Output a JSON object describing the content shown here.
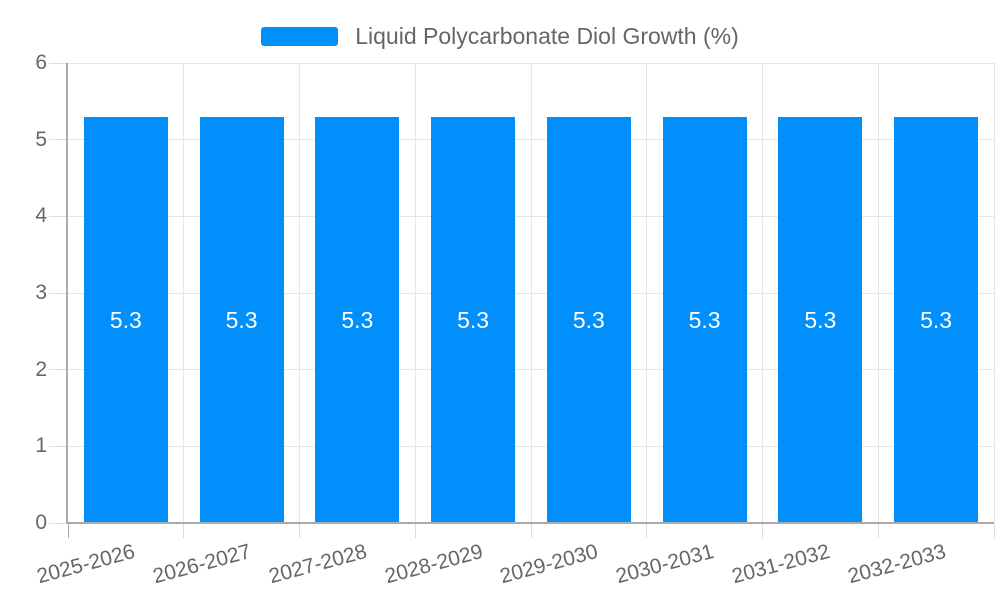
{
  "chart_data": {
    "type": "bar",
    "title": "",
    "categories": [
      "2025-2026",
      "2026-2027",
      "2027-2028",
      "2028-2029",
      "2029-2030",
      "2030-2031",
      "2031-2032",
      "2032-2033"
    ],
    "series": [
      {
        "name": "Liquid Polycarbonate Diol Growth (%)",
        "values": [
          5.3,
          5.3,
          5.3,
          5.3,
          5.3,
          5.3,
          5.3,
          5.3
        ]
      }
    ],
    "bar_value_labels": [
      "5.3",
      "5.3",
      "5.3",
      "5.3",
      "5.3",
      "5.3",
      "5.3",
      "5.3"
    ],
    "xlabel": "",
    "ylabel": "",
    "ylim": [
      0,
      6
    ],
    "y_ticks": [
      0,
      1,
      2,
      3,
      4,
      5,
      6
    ],
    "grid": true,
    "legend_position": "top",
    "colors": {
      "bar": "#008FFB",
      "gridline": "#e6e6e6",
      "tick": "#dddddd",
      "axis_line": "#aaaaaa",
      "axis_text": "#666666",
      "bar_label_text": "#ffffff",
      "background": "#ffffff"
    }
  }
}
